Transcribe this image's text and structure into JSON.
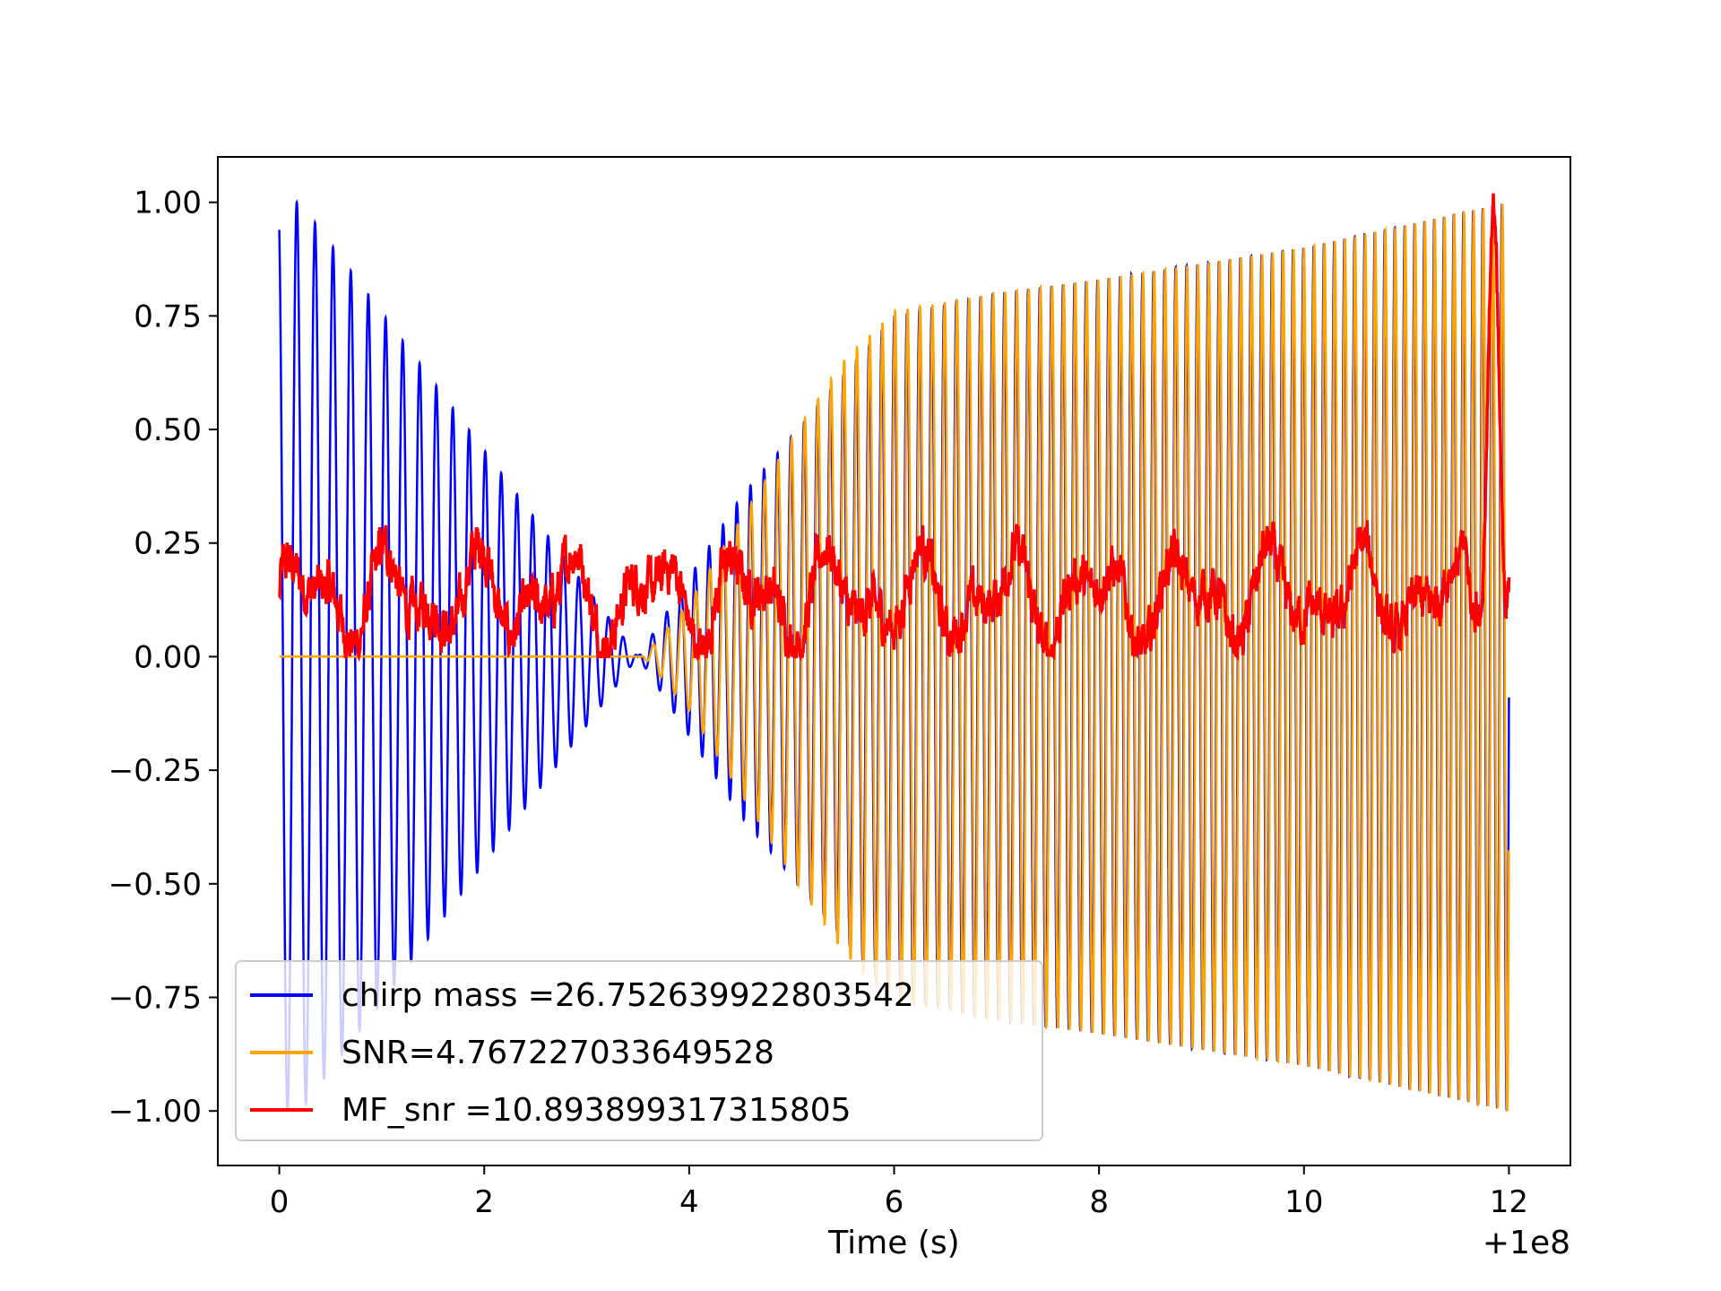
{
  "chart_data": {
    "type": "line",
    "title": "",
    "xlabel": "Time (s)",
    "ylabel": "",
    "x_offset_label": "+1e8",
    "xlim": [
      -0.6,
      12.6
    ],
    "ylim": [
      -1.12,
      1.1
    ],
    "x_ticks": [
      0,
      2,
      4,
      6,
      8,
      10,
      12
    ],
    "x_tick_labels": [
      "0",
      "2",
      "4",
      "6",
      "8",
      "10",
      "12"
    ],
    "y_ticks": [
      1.0,
      0.75,
      0.5,
      0.25,
      0.0,
      -0.25,
      -0.5,
      -0.75,
      -1.0
    ],
    "y_tick_labels": [
      "1.00",
      "0.75",
      "0.50",
      "0.25",
      "0.00",
      "−0.25",
      "−0.50",
      "−0.75",
      "−1.00"
    ],
    "grid": false,
    "legend_position": "lower-left",
    "series": [
      {
        "name": "chirp mass =26.752639922803542",
        "color": "#0000ff",
        "kind": "chirp-oscillation",
        "x_range": [
          0,
          12
        ],
        "envelope": [
          {
            "x": 0.0,
            "y": 1.0
          },
          {
            "x": 0.2,
            "y": 1.0
          },
          {
            "x": 3.5,
            "y": 0.0
          },
          {
            "x": 4.5,
            "y": 0.35
          },
          {
            "x": 5.5,
            "y": 0.62
          },
          {
            "x": 6.0,
            "y": 0.75
          },
          {
            "x": 7.0,
            "y": 0.8
          },
          {
            "x": 8.0,
            "y": 0.83
          },
          {
            "x": 10.0,
            "y": 0.9
          },
          {
            "x": 12.0,
            "y": 1.0
          }
        ]
      },
      {
        "name": "SNR=4.767227033649528",
        "color": "#ffa500",
        "kind": "chirp-oscillation",
        "x_range": [
          0,
          12
        ],
        "envelope": [
          {
            "x": 0.0,
            "y": 0.0
          },
          {
            "x": 3.55,
            "y": 0.0
          },
          {
            "x": 4.0,
            "y": 0.12
          },
          {
            "x": 4.5,
            "y": 0.3
          },
          {
            "x": 5.0,
            "y": 0.48
          },
          {
            "x": 5.5,
            "y": 0.65
          },
          {
            "x": 6.0,
            "y": 0.76
          },
          {
            "x": 7.0,
            "y": 0.8
          },
          {
            "x": 8.0,
            "y": 0.83
          },
          {
            "x": 10.0,
            "y": 0.9
          },
          {
            "x": 12.0,
            "y": 1.0
          }
        ]
      },
      {
        "name": "MF_snr =10.893899317315805",
        "color": "#ff0000",
        "kind": "noisy-positive",
        "x_range": [
          0,
          12
        ],
        "baseline_range": [
          0.0,
          0.37
        ],
        "peak": {
          "x": 11.85,
          "y": 1.0
        }
      }
    ]
  }
}
